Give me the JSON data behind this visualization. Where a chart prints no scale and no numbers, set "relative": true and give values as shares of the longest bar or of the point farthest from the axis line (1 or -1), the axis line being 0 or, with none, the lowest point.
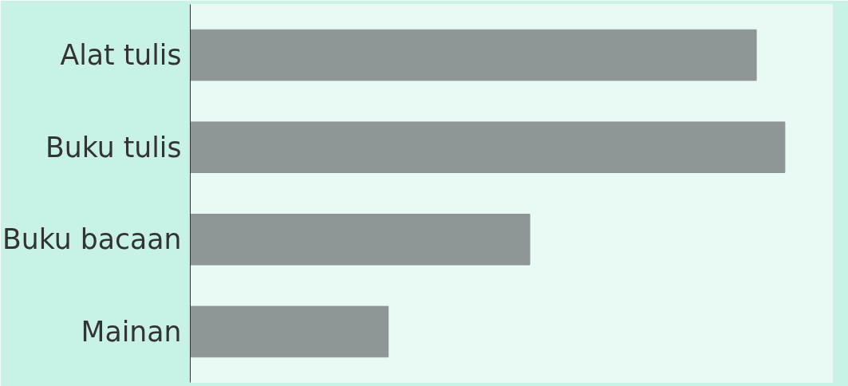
{
  "chart_data": {
    "type": "bar",
    "orientation": "horizontal",
    "relative": true,
    "categories": [
      "Alat tulis",
      "Buku tulis",
      "Buku bacaan",
      "Mainan"
    ],
    "values": [
      0.952,
      1,
      0.571,
      0.333
    ],
    "color": "#8e9697",
    "grid": false
  }
}
